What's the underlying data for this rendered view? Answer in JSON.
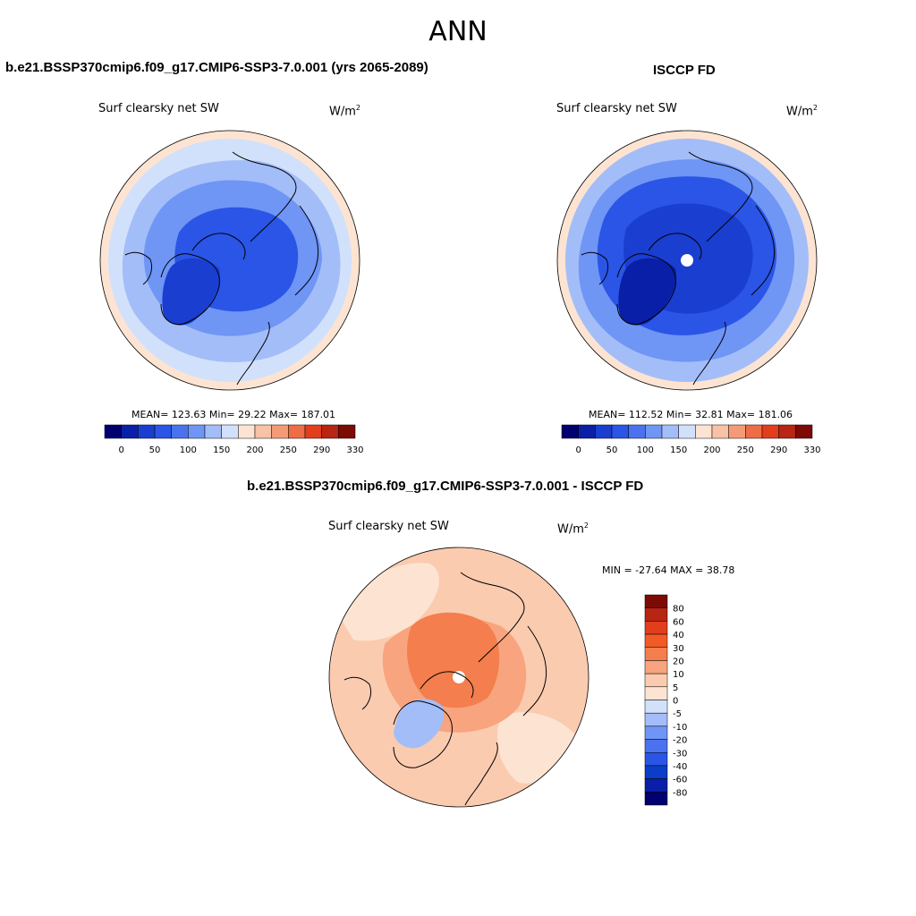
{
  "page_title": "ANN",
  "panels": [
    {
      "title": "b.e21.BSSP370cmip6.f09_g17.CMIP6-SSP3-7.0.001 (yrs 2065-2089)",
      "variable": "Surf clearsky net SW",
      "units_base": "W/m",
      "units_exp": "2",
      "stats": "MEAN= 123.63  Min=  29.22  Max= 187.01",
      "has_pole_hole": false
    },
    {
      "title": "ISCCP FD",
      "variable": "Surf clearsky net SW",
      "units_base": "W/m",
      "units_exp": "2",
      "stats": "MEAN= 112.52  Min=  32.81  Max= 181.06",
      "has_pole_hole": true
    },
    {
      "title": "b.e21.BSSP370cmip6.f09_g17.CMIP6-SSP3-7.0.001 - ISCCP FD",
      "variable": "Surf clearsky net SW",
      "units_base": "W/m",
      "units_exp": "2",
      "stats": "MIN = -27.64 MAX =  38.78",
      "has_pole_hole": true
    }
  ],
  "field_colorbar": {
    "colors": [
      "#000070",
      "#0a1fa8",
      "#1a3ed0",
      "#2a55e6",
      "#4a72ef",
      "#6f95f5",
      "#a3bdf8",
      "#d2e1fb",
      "#fde4d2",
      "#f8c2a6",
      "#f49a77",
      "#ee6c46",
      "#e23e1c",
      "#b82512",
      "#7c0a05"
    ],
    "tick_labels": [
      "0",
      "50",
      "100",
      "150",
      "200",
      "250",
      "290",
      "330"
    ]
  },
  "diff_colorbar": {
    "colors": [
      "#7c0a05",
      "#b82512",
      "#e23e1c",
      "#f25a26",
      "#f47e4e",
      "#f8a47e",
      "#fbcbb0",
      "#fde4d2",
      "#d2e1fb",
      "#a3bdf8",
      "#6f95f5",
      "#4a72ef",
      "#2a55e6",
      "#0a3dc8",
      "#0a1fa8",
      "#000070"
    ],
    "tick_labels": [
      "80",
      "60",
      "40",
      "30",
      "20",
      "10",
      "5",
      "0",
      "-5",
      "-10",
      "-20",
      "-30",
      "-40",
      "-60",
      "-80"
    ]
  },
  "colors": {
    "ring_model": "#fde4d2",
    "outer_model": "#d2e1fb",
    "mid_model": "#a3bdf8",
    "inner_model": "#6f95f5",
    "core_model": "#2a55e6",
    "greenland_model": "#1a3ed0",
    "outer_obs": "#a3bdf8",
    "mid_obs": "#6f95f5",
    "inner_obs": "#2a55e6",
    "core_obs": "#1a3ed0",
    "greenland_obs": "#0a1fa8",
    "diff_bg": "#fbcbb0",
    "diff_light": "#fde4d2",
    "diff_mid": "#f8a47e",
    "diff_strong": "#f47e4e",
    "diff_blue": "#a3bdf8",
    "coast": "#000000"
  }
}
